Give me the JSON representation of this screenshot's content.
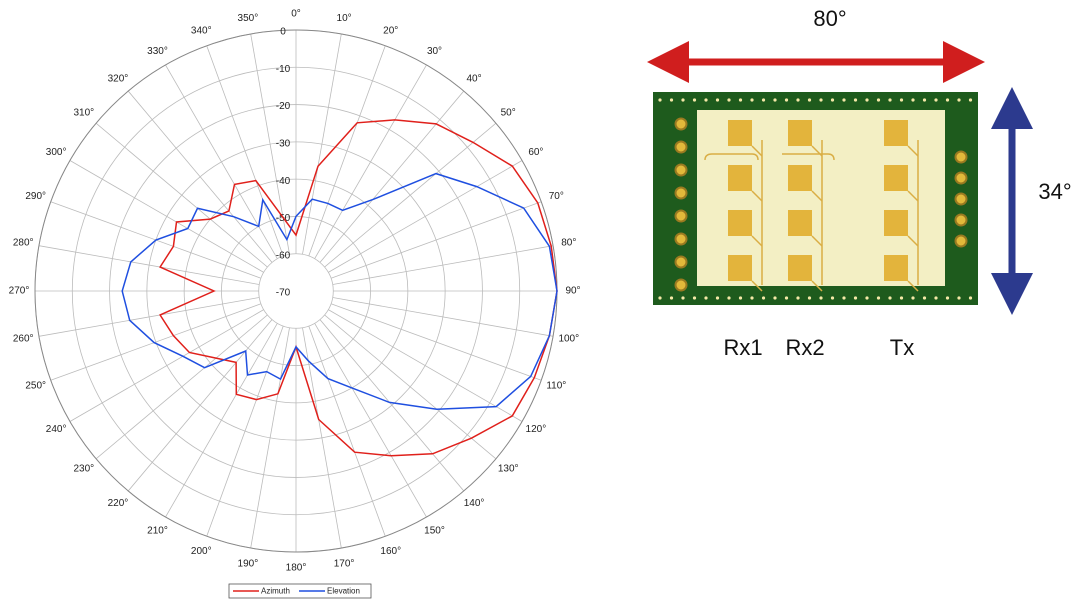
{
  "chart_data": {
    "type": "polar",
    "theta": [
      0,
      10,
      20,
      30,
      40,
      50,
      60,
      70,
      80,
      90,
      100,
      110,
      120,
      130,
      140,
      150,
      160,
      170,
      180,
      190,
      200,
      210,
      220,
      230,
      240,
      250,
      260,
      270,
      280,
      290,
      300,
      310,
      320,
      330,
      340,
      350
    ],
    "thetaticks": [
      {
        "value": 0,
        "label": "0°"
      },
      {
        "value": 10,
        "label": "10°"
      },
      {
        "value": 20,
        "label": "20°"
      },
      {
        "value": 30,
        "label": "30°"
      },
      {
        "value": 40,
        "label": "40°"
      },
      {
        "value": 50,
        "label": "50°"
      },
      {
        "value": 60,
        "label": "60°"
      },
      {
        "value": 70,
        "label": "70°"
      },
      {
        "value": 80,
        "label": "80°"
      },
      {
        "value": 90,
        "label": "90°"
      },
      {
        "value": 100,
        "label": "100°"
      },
      {
        "value": 110,
        "label": "110°"
      },
      {
        "value": 120,
        "label": "120°"
      },
      {
        "value": 130,
        "label": "130°"
      },
      {
        "value": 140,
        "label": "140°"
      },
      {
        "value": 150,
        "label": "150°"
      },
      {
        "value": 160,
        "label": "160°"
      },
      {
        "value": 170,
        "label": "170°"
      },
      {
        "value": 180,
        "label": "180°"
      },
      {
        "value": 190,
        "label": "190°"
      },
      {
        "value": 200,
        "label": "200°"
      },
      {
        "value": 210,
        "label": "210°"
      },
      {
        "value": 220,
        "label": "220°"
      },
      {
        "value": 230,
        "label": "230°"
      },
      {
        "value": 240,
        "label": "240°"
      },
      {
        "value": 250,
        "label": "250°"
      },
      {
        "value": 260,
        "label": "260°"
      },
      {
        "value": 270,
        "label": "270°"
      },
      {
        "value": 280,
        "label": "280°"
      },
      {
        "value": 290,
        "label": "290°"
      },
      {
        "value": 300,
        "label": "300°"
      },
      {
        "value": 310,
        "label": "310°"
      },
      {
        "value": 320,
        "label": "320°"
      },
      {
        "value": 330,
        "label": "330°"
      },
      {
        "value": 340,
        "label": "340°"
      },
      {
        "value": 350,
        "label": "350°"
      }
    ],
    "rlim": [
      -70,
      0
    ],
    "rticks": [
      0,
      -10,
      -20,
      -30,
      -40,
      -50,
      -60,
      -70
    ],
    "grid": true,
    "series": [
      {
        "name": "Azimuth",
        "color": "#e0201b",
        "values": [
          -55,
          -36,
          -22,
          -17,
          -11.5,
          -8,
          -3,
          -1,
          -0.5,
          0,
          -1,
          -2,
          -3,
          -8.6,
          -13,
          -19,
          -24,
          -35,
          -55,
          -42,
          -39,
          -38,
          -45,
          -42,
          -37,
          -35,
          -33,
          -48,
          -33,
          -35,
          -33,
          -40,
          -42,
          -37,
          -38.5,
          -50
        ]
      },
      {
        "name": "Elevation",
        "color": "#1f4fe0",
        "values": [
          -50,
          -45,
          -45,
          -45,
          -38,
          -21,
          -14,
          -5,
          -1,
          0,
          -1,
          -3,
          -8,
          -20.7,
          -31,
          -40,
          -45,
          -51,
          -55,
          -46,
          -47,
          -44,
          -49,
          -38,
          -35,
          -29.5,
          -24.7,
          -23.4,
          -25,
          -30,
          -36.5,
          -35.5,
          -44,
          -50,
          -44,
          -56
        ]
      }
    ]
  },
  "diagram": {
    "width_label": "80°",
    "height_label": "34°",
    "antennas": [
      "Rx1",
      "Rx2",
      "Tx"
    ]
  }
}
